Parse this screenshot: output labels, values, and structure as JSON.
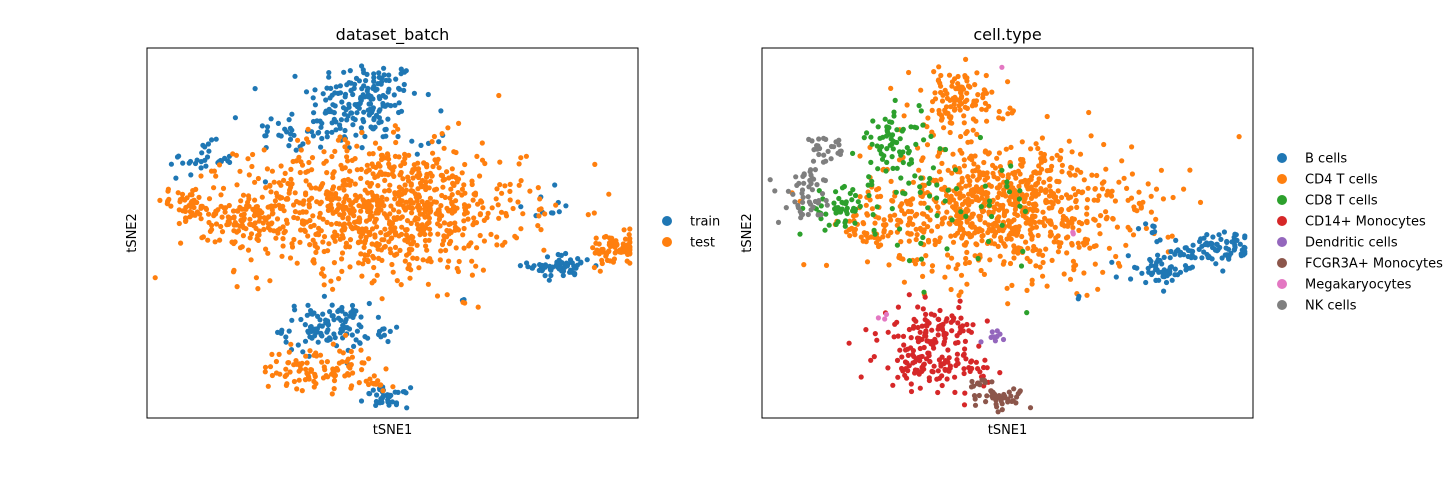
{
  "chart_data": [
    {
      "type": "scatter",
      "title": "dataset_batch",
      "xlabel": "tSNE1",
      "ylabel": "tSNE2",
      "xlim": [
        -45,
        45
      ],
      "ylim": [
        -45,
        45
      ],
      "grid": false,
      "xticks": false,
      "yticks": false,
      "legend_position": "right",
      "legend": [
        {
          "label": "train",
          "color": "#1f77b4"
        },
        {
          "label": "test",
          "color": "#ff7f0e"
        }
      ],
      "clusters": [
        {
          "group": "train",
          "center": [
            -5,
            33
          ],
          "spread": [
            5,
            4.5
          ],
          "n": 150
        },
        {
          "group": "train",
          "center": [
            -14,
            25
          ],
          "spread": [
            6,
            3
          ],
          "n": 60
        },
        {
          "group": "train",
          "center": [
            -35,
            18
          ],
          "spread": [
            3,
            2
          ],
          "n": 30
        },
        {
          "group": "train",
          "center": [
            2,
            22
          ],
          "spread": [
            4,
            1.5
          ],
          "n": 12
        },
        {
          "group": "train",
          "center": [
            27,
            7
          ],
          "spread": [
            2,
            2
          ],
          "n": 10
        },
        {
          "group": "train",
          "center": [
            31,
            -8
          ],
          "spread": [
            3,
            1.5
          ],
          "n": 60
        },
        {
          "group": "train",
          "center": [
            -12,
            -23
          ],
          "spread": [
            4,
            3
          ],
          "n": 110
        },
        {
          "group": "train",
          "center": [
            -1,
            -24
          ],
          "spread": [
            1.2,
            0.5
          ],
          "n": 8
        },
        {
          "group": "train",
          "center": [
            -1,
            -40
          ],
          "spread": [
            2,
            1.2
          ],
          "n": 40
        },
        {
          "group": "train",
          "center": [
            13,
            -16
          ],
          "spread": [
            0.2,
            0.5
          ],
          "n": 2
        },
        {
          "group": "test",
          "center": [
            -2,
            6
          ],
          "spread": [
            13,
            8
          ],
          "n": 900
        },
        {
          "group": "test",
          "center": [
            -38,
            7
          ],
          "spread": [
            2.5,
            2
          ],
          "n": 45
        },
        {
          "group": "test",
          "center": [
            -27,
            4
          ],
          "spread": [
            4,
            3.5
          ],
          "n": 100
        },
        {
          "group": "test",
          "center": [
            41,
            -4
          ],
          "spread": [
            2.5,
            2
          ],
          "n": 80
        },
        {
          "group": "test",
          "center": [
            -14,
            -33
          ],
          "spread": [
            5,
            2.5
          ],
          "n": 100
        },
        {
          "group": "test",
          "center": [
            -3,
            -37
          ],
          "spread": [
            1.5,
            0.8
          ],
          "n": 12
        },
        {
          "group": "test",
          "center": [
            13,
            -17
          ],
          "spread": [
            0.2,
            0.3
          ],
          "n": 2
        }
      ]
    },
    {
      "type": "scatter",
      "title": "cell.type",
      "xlabel": "tSNE1",
      "ylabel": "tSNE2",
      "xlim": [
        -45,
        45
      ],
      "ylim": [
        -45,
        45
      ],
      "grid": false,
      "xticks": false,
      "yticks": false,
      "legend_position": "right",
      "legend": [
        {
          "label": "B cells",
          "color": "#1f77b4"
        },
        {
          "label": "CD4 T cells",
          "color": "#ff7f0e"
        },
        {
          "label": "CD8 T cells",
          "color": "#2ca02c"
        },
        {
          "label": "CD14+ Monocytes",
          "color": "#d62728"
        },
        {
          "label": "Dendritic cells",
          "color": "#9467bd"
        },
        {
          "label": "FCGR3A+ Monocytes",
          "color": "#8c564b"
        },
        {
          "label": "Megakaryocytes",
          "color": "#e377c2"
        },
        {
          "label": "NK cells",
          "color": "#7f7f7f"
        }
      ],
      "clusters": [
        {
          "group": "CD4 T cells",
          "center": [
            -1,
            6
          ],
          "spread": [
            12,
            8
          ],
          "n": 850
        },
        {
          "group": "CD4 T cells",
          "center": [
            -9,
            32
          ],
          "spread": [
            4.5,
            4
          ],
          "n": 120
        },
        {
          "group": "CD4 T cells",
          "center": [
            -25,
            2
          ],
          "spread": [
            3,
            3
          ],
          "n": 40
        },
        {
          "group": "CD4 T cells",
          "center": [
            24,
            6
          ],
          "spread": [
            1,
            0.7
          ],
          "n": 6
        },
        {
          "group": "CD8 T cells",
          "center": [
            -21,
            22
          ],
          "spread": [
            2.5,
            4
          ],
          "n": 60
        },
        {
          "group": "CD8 T cells",
          "center": [
            -31,
            6
          ],
          "spread": [
            3,
            2
          ],
          "n": 50
        },
        {
          "group": "CD8 T cells",
          "center": [
            -13,
            8
          ],
          "spread": [
            10,
            8
          ],
          "n": 70
        },
        {
          "group": "NK cells",
          "center": [
            -37,
            8
          ],
          "spread": [
            2.5,
            3
          ],
          "n": 40
        },
        {
          "group": "NK cells",
          "center": [
            -33,
            20
          ],
          "spread": [
            2,
            1.5
          ],
          "n": 25
        },
        {
          "group": "NK cells",
          "center": [
            -36,
            13
          ],
          "spread": [
            1.2,
            1.5
          ],
          "n": 12
        },
        {
          "group": "B cells",
          "center": [
            38,
            -4
          ],
          "spread": [
            4,
            2
          ],
          "n": 90
        },
        {
          "group": "B cells",
          "center": [
            28,
            -9
          ],
          "spread": [
            3,
            1.5
          ],
          "n": 50
        },
        {
          "group": "B cells",
          "center": [
            26,
            1
          ],
          "spread": [
            0.8,
            0.6
          ],
          "n": 6
        },
        {
          "group": "B cells",
          "center": [
            13,
            -16
          ],
          "spread": [
            0.2,
            0.4
          ],
          "n": 2
        },
        {
          "group": "CD14+ Monocytes",
          "center": [
            -14,
            -24
          ],
          "spread": [
            4.5,
            3
          ],
          "n": 110
        },
        {
          "group": "CD14+ Monocytes",
          "center": [
            -13,
            -33
          ],
          "spread": [
            5,
            2.5
          ],
          "n": 100
        },
        {
          "group": "FCGR3A+ Monocytes",
          "center": [
            -1,
            -40
          ],
          "spread": [
            2,
            1.2
          ],
          "n": 40
        },
        {
          "group": "FCGR3A+ Monocytes",
          "center": [
            -5,
            -37
          ],
          "spread": [
            1.5,
            0.8
          ],
          "n": 12
        },
        {
          "group": "Dendritic cells",
          "center": [
            -2,
            -25
          ],
          "spread": [
            1.2,
            0.6
          ],
          "n": 10
        },
        {
          "group": "Megakaryocytes",
          "center": [
            -24,
            -20
          ],
          "spread": [
            1.5,
            0.5
          ],
          "n": 3
        },
        {
          "group": "Megakaryocytes",
          "center": [
            -1,
            40
          ],
          "spread": [
            0.3,
            0.3
          ],
          "n": 1
        },
        {
          "group": "Megakaryocytes",
          "center": [
            12,
            0
          ],
          "spread": [
            0.5,
            0.3
          ],
          "n": 2
        }
      ]
    }
  ]
}
